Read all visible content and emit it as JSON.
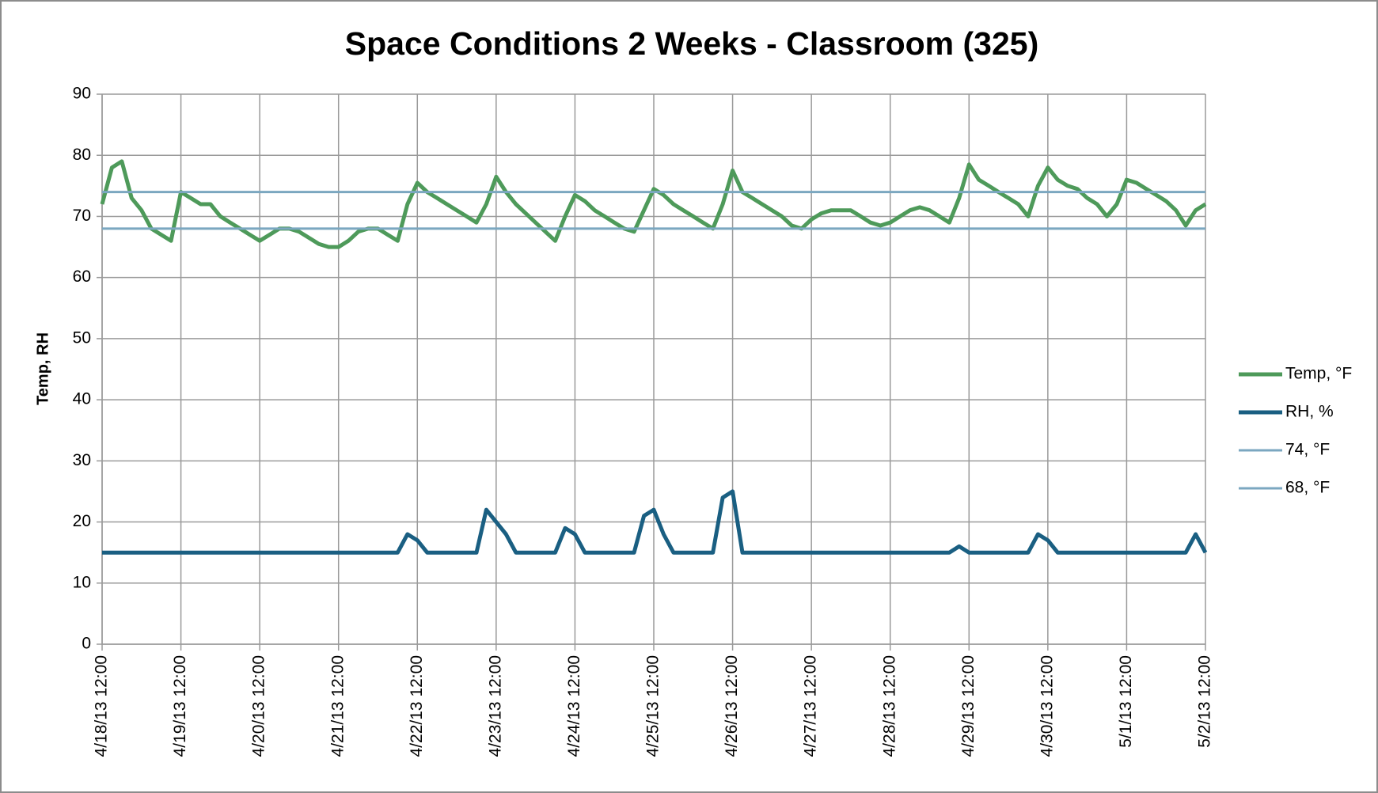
{
  "chart_data": {
    "type": "line",
    "title": "Space Conditions 2 Weeks - Classroom (325)",
    "y_label": "Temp, RH",
    "ylim": [
      0,
      90
    ],
    "yticks": [
      0,
      10,
      20,
      30,
      40,
      50,
      60,
      70,
      80,
      90
    ],
    "xlim": [
      "2013-04-18T12:00",
      "2013-05-02T12:00"
    ],
    "xticks": [
      {
        "value": "2013-04-18T12:00",
        "label": "4/18/13 12:00"
      },
      {
        "value": "2013-04-19T12:00",
        "label": "4/19/13 12:00"
      },
      {
        "value": "2013-04-20T12:00",
        "label": "4/20/13 12:00"
      },
      {
        "value": "2013-04-21T12:00",
        "label": "4/21/13 12:00"
      },
      {
        "value": "2013-04-22T12:00",
        "label": "4/22/13 12:00"
      },
      {
        "value": "2013-04-23T12:00",
        "label": "4/23/13 12:00"
      },
      {
        "value": "2013-04-24T12:00",
        "label": "4/24/13 12:00"
      },
      {
        "value": "2013-04-25T12:00",
        "label": "4/25/13 12:00"
      },
      {
        "value": "2013-04-26T12:00",
        "label": "4/26/13 12:00"
      },
      {
        "value": "2013-04-27T12:00",
        "label": "4/27/13 12:00"
      },
      {
        "value": "2013-04-28T12:00",
        "label": "4/28/13 12:00"
      },
      {
        "value": "2013-04-29T12:00",
        "label": "4/29/13 12:00"
      },
      {
        "value": "2013-04-30T12:00",
        "label": "4/30/13 12:00"
      },
      {
        "value": "2013-05-01T12:00",
        "label": "5/1/13 12:00"
      },
      {
        "value": "2013-05-02T12:00",
        "label": "5/2/13 12:00"
      }
    ],
    "grid": true,
    "legend": "right",
    "x": [
      "2013-04-18T12:00",
      "2013-04-18T15:00",
      "2013-04-18T18:00",
      "2013-04-18T21:00",
      "2013-04-19T00:00",
      "2013-04-19T03:00",
      "2013-04-19T06:00",
      "2013-04-19T09:00",
      "2013-04-19T12:00",
      "2013-04-19T15:00",
      "2013-04-19T18:00",
      "2013-04-19T21:00",
      "2013-04-20T00:00",
      "2013-04-20T03:00",
      "2013-04-20T06:00",
      "2013-04-20T09:00",
      "2013-04-20T12:00",
      "2013-04-20T15:00",
      "2013-04-20T18:00",
      "2013-04-20T21:00",
      "2013-04-21T00:00",
      "2013-04-21T03:00",
      "2013-04-21T06:00",
      "2013-04-21T09:00",
      "2013-04-21T12:00",
      "2013-04-21T15:00",
      "2013-04-21T18:00",
      "2013-04-21T21:00",
      "2013-04-22T00:00",
      "2013-04-22T03:00",
      "2013-04-22T06:00",
      "2013-04-22T09:00",
      "2013-04-22T12:00",
      "2013-04-22T15:00",
      "2013-04-22T18:00",
      "2013-04-22T21:00",
      "2013-04-23T00:00",
      "2013-04-23T03:00",
      "2013-04-23T06:00",
      "2013-04-23T09:00",
      "2013-04-23T12:00",
      "2013-04-23T15:00",
      "2013-04-23T18:00",
      "2013-04-23T21:00",
      "2013-04-24T00:00",
      "2013-04-24T03:00",
      "2013-04-24T06:00",
      "2013-04-24T09:00",
      "2013-04-24T12:00",
      "2013-04-24T15:00",
      "2013-04-24T18:00",
      "2013-04-24T21:00",
      "2013-04-25T00:00",
      "2013-04-25T03:00",
      "2013-04-25T06:00",
      "2013-04-25T09:00",
      "2013-04-25T12:00",
      "2013-04-25T15:00",
      "2013-04-25T18:00",
      "2013-04-25T21:00",
      "2013-04-26T00:00",
      "2013-04-26T03:00",
      "2013-04-26T06:00",
      "2013-04-26T09:00",
      "2013-04-26T12:00",
      "2013-04-26T15:00",
      "2013-04-26T18:00",
      "2013-04-26T21:00",
      "2013-04-27T00:00",
      "2013-04-27T03:00",
      "2013-04-27T06:00",
      "2013-04-27T09:00",
      "2013-04-27T12:00",
      "2013-04-27T15:00",
      "2013-04-27T18:00",
      "2013-04-27T21:00",
      "2013-04-28T00:00",
      "2013-04-28T03:00",
      "2013-04-28T06:00",
      "2013-04-28T09:00",
      "2013-04-28T12:00",
      "2013-04-28T15:00",
      "2013-04-28T18:00",
      "2013-04-28T21:00",
      "2013-04-29T00:00",
      "2013-04-29T03:00",
      "2013-04-29T06:00",
      "2013-04-29T09:00",
      "2013-04-29T12:00",
      "2013-04-29T15:00",
      "2013-04-29T18:00",
      "2013-04-29T21:00",
      "2013-04-30T00:00",
      "2013-04-30T03:00",
      "2013-04-30T06:00",
      "2013-04-30T09:00",
      "2013-04-30T12:00",
      "2013-04-30T15:00",
      "2013-04-30T18:00",
      "2013-04-30T21:00",
      "2013-05-01T00:00",
      "2013-05-01T03:00",
      "2013-05-01T06:00",
      "2013-05-01T09:00",
      "2013-05-01T12:00",
      "2013-05-01T15:00",
      "2013-05-01T18:00",
      "2013-05-01T21:00",
      "2013-05-02T00:00",
      "2013-05-02T03:00",
      "2013-05-02T06:00",
      "2013-05-02T09:00",
      "2013-05-02T12:00"
    ],
    "series": [
      {
        "name": "Temp, °F",
        "color": "#4e9a5a",
        "width": 5,
        "values": [
          72,
          78,
          79,
          73,
          71,
          68,
          67,
          66,
          74,
          73,
          72,
          72,
          70,
          69,
          68,
          67,
          66,
          67,
          68,
          68,
          67.5,
          66.5,
          65.5,
          65,
          65,
          66,
          67.5,
          68,
          68,
          67,
          66,
          72,
          75.5,
          74,
          73,
          72,
          71,
          70,
          69,
          72,
          76.5,
          74,
          72,
          70.5,
          69,
          67.5,
          66,
          70,
          73.5,
          72.5,
          71,
          70,
          69,
          68,
          67.5,
          71,
          74.5,
          73.5,
          72,
          71,
          70,
          69,
          68,
          72,
          77.5,
          74,
          73,
          72,
          71,
          70,
          68.5,
          68,
          69.5,
          70.5,
          71,
          71,
          71,
          70,
          69,
          68.5,
          69,
          70,
          71,
          71.5,
          71,
          70,
          69,
          73,
          78.5,
          76,
          75,
          74,
          73,
          72,
          70,
          75,
          78,
          76,
          75,
          74.5,
          73,
          72,
          70,
          72,
          76,
          75.5,
          74.5,
          73.5,
          72.5,
          71,
          68.5,
          71,
          72
        ]
      },
      {
        "name": "RH, %",
        "color": "#1a5f82",
        "width": 5,
        "values": [
          15,
          15,
          15,
          15,
          15,
          15,
          15,
          15,
          15,
          15,
          15,
          15,
          15,
          15,
          15,
          15,
          15,
          15,
          15,
          15,
          15,
          15,
          15,
          15,
          15,
          15,
          15,
          15,
          15,
          15,
          15,
          18,
          17,
          15,
          15,
          15,
          15,
          15,
          15,
          22,
          20,
          18,
          15,
          15,
          15,
          15,
          15,
          19,
          18,
          15,
          15,
          15,
          15,
          15,
          15,
          21,
          22,
          18,
          15,
          15,
          15,
          15,
          15,
          24,
          25,
          15,
          15,
          15,
          15,
          15,
          15,
          15,
          15,
          15,
          15,
          15,
          15,
          15,
          15,
          15,
          15,
          15,
          15,
          15,
          15,
          15,
          15,
          16,
          15,
          15,
          15,
          15,
          15,
          15,
          15,
          18,
          17,
          15,
          15,
          15,
          15,
          15,
          15,
          15,
          15,
          15,
          15,
          15,
          15,
          15,
          15,
          18,
          15
        ]
      },
      {
        "name": "74, °F",
        "color": "#7ba7c0",
        "width": 3,
        "x": [
          "2013-04-18T12:00",
          "2013-05-02T12:00"
        ],
        "values": [
          74,
          74
        ]
      },
      {
        "name": "68, °F",
        "color": "#7ba7c0",
        "width": 3,
        "x": [
          "2013-04-18T12:00",
          "2013-05-02T12:00"
        ],
        "values": [
          68,
          68
        ]
      }
    ]
  }
}
